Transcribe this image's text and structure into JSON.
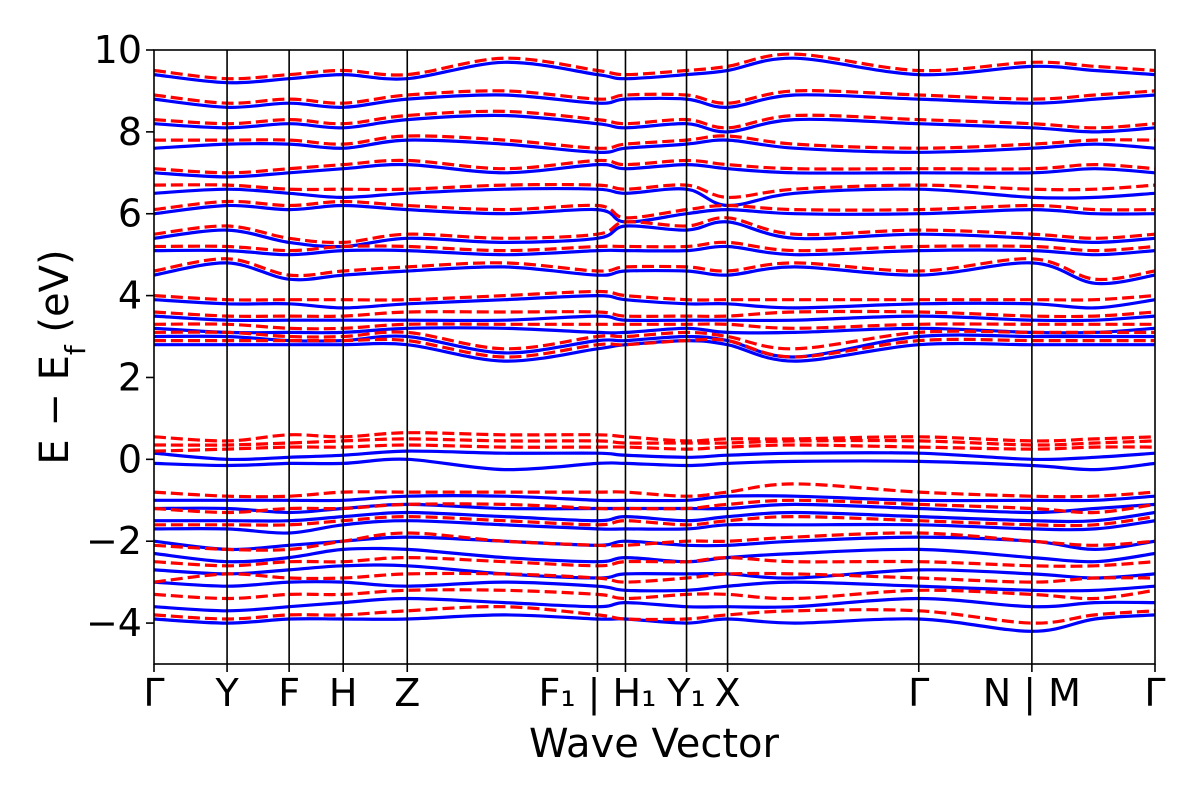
{
  "chart_data": {
    "type": "line",
    "title": "",
    "xlabel": "Wave Vector",
    "ylabel": "E − E",
    "ylabel_sub": "f",
    "ylabel_unit": " (eV)",
    "ylim": [
      -5,
      10
    ],
    "yticks": [
      -4,
      -2,
      0,
      2,
      4,
      6,
      8,
      10
    ],
    "ytick_labels": [
      "−4",
      "−2",
      "0",
      "2",
      "4",
      "6",
      "8",
      "10"
    ],
    "grid": false,
    "legend": "none",
    "colors": {
      "solid": "#0000ff",
      "dashed": "#ff0000",
      "kline": "#000000"
    },
    "x_range": [
      0,
      1
    ],
    "k_points": [
      {
        "label": "Γ",
        "x": 0.0,
        "line": false
      },
      {
        "label": "Y",
        "x": 0.073,
        "line": true
      },
      {
        "label": "F",
        "x": 0.135,
        "line": true
      },
      {
        "label": "H",
        "x": 0.189,
        "line": true
      },
      {
        "label": "Z",
        "x": 0.253,
        "line": true
      },
      {
        "label": "F₁ | H₁",
        "x": 0.443,
        "line": true
      },
      {
        "label": "",
        "x": 0.471,
        "line": true
      },
      {
        "label": "Y₁",
        "x": 0.532,
        "line": true
      },
      {
        "label": "X",
        "x": 0.573,
        "line": true
      },
      {
        "label": "Γ",
        "x": 0.764,
        "line": true
      },
      {
        "label": "N | M",
        "x": 0.877,
        "line": true
      },
      {
        "label": "Γ",
        "x": 1.0,
        "line": false
      }
    ],
    "band_x": [
      0,
      0.073,
      0.135,
      0.189,
      0.253,
      0.35,
      0.443,
      0.471,
      0.532,
      0.573,
      0.64,
      0.764,
      0.877,
      0.94,
      1.0
    ],
    "series": [
      {
        "style": "solid",
        "values": [
          -3.9,
          -4.0,
          -3.9,
          -3.9,
          -3.9,
          -3.8,
          -3.9,
          -3.9,
          -4.0,
          -3.9,
          -4.0,
          -3.9,
          -4.2,
          -3.9,
          -3.8
        ]
      },
      {
        "style": "solid",
        "values": [
          -3.6,
          -3.7,
          -3.6,
          -3.5,
          -3.4,
          -3.5,
          -3.6,
          -3.5,
          -3.6,
          -3.6,
          -3.6,
          -3.4,
          -3.6,
          -3.5,
          -3.5
        ]
      },
      {
        "style": "solid",
        "values": [
          -3.0,
          -3.1,
          -3.0,
          -3.0,
          -3.1,
          -3.0,
          -3.1,
          -3.2,
          -3.2,
          -3.1,
          -3.0,
          -3.1,
          -3.2,
          -3.2,
          -3.1
        ]
      },
      {
        "style": "solid",
        "values": [
          -2.7,
          -2.8,
          -2.7,
          -2.6,
          -2.6,
          -2.8,
          -2.9,
          -2.8,
          -2.8,
          -2.8,
          -2.9,
          -2.7,
          -2.8,
          -2.9,
          -2.8
        ]
      },
      {
        "style": "solid",
        "values": [
          -2.3,
          -2.5,
          -2.4,
          -2.2,
          -2.2,
          -2.4,
          -2.5,
          -2.4,
          -2.5,
          -2.4,
          -2.3,
          -2.2,
          -2.4,
          -2.5,
          -2.3
        ]
      },
      {
        "style": "solid",
        "values": [
          -2.0,
          -2.2,
          -2.1,
          -2.0,
          -1.9,
          -2.0,
          -2.1,
          -2.0,
          -2.1,
          -2.1,
          -2.0,
          -1.9,
          -2.0,
          -2.2,
          -2.0
        ]
      },
      {
        "style": "solid",
        "values": [
          -1.7,
          -1.7,
          -1.8,
          -1.6,
          -1.5,
          -1.6,
          -1.7,
          -1.7,
          -1.7,
          -1.6,
          -1.6,
          -1.6,
          -1.7,
          -1.7,
          -1.5
        ]
      },
      {
        "style": "solid",
        "values": [
          -1.5,
          -1.5,
          -1.5,
          -1.4,
          -1.3,
          -1.4,
          -1.5,
          -1.4,
          -1.5,
          -1.4,
          -1.3,
          -1.4,
          -1.5,
          -1.5,
          -1.3
        ]
      },
      {
        "style": "solid",
        "values": [
          -1.2,
          -1.2,
          -1.3,
          -1.2,
          -1.1,
          -1.2,
          -1.2,
          -1.2,
          -1.2,
          -1.2,
          -1.1,
          -1.2,
          -1.3,
          -1.2,
          -1.1
        ]
      },
      {
        "style": "solid",
        "values": [
          -1.0,
          -1.0,
          -1.0,
          -1.0,
          -0.9,
          -0.9,
          -1.0,
          -1.0,
          -1.0,
          -0.9,
          -0.9,
          -1.0,
          -1.0,
          -1.0,
          -0.9
        ]
      },
      {
        "style": "solid",
        "values": [
          -0.1,
          -0.15,
          -0.1,
          -0.1,
          0.0,
          -0.25,
          -0.1,
          -0.1,
          -0.15,
          -0.1,
          -0.05,
          -0.05,
          -0.15,
          -0.25,
          -0.1
        ]
      },
      {
        "style": "solid",
        "values": [
          0.15,
          0.0,
          0.05,
          0.1,
          0.2,
          0.15,
          0.15,
          0.1,
          0.05,
          0.1,
          0.15,
          0.15,
          0.0,
          0.05,
          0.15
        ]
      },
      {
        "style": "solid",
        "values": [
          2.8,
          2.8,
          2.8,
          2.8,
          2.8,
          2.4,
          2.7,
          2.8,
          2.9,
          2.8,
          2.4,
          2.8,
          2.8,
          2.8,
          2.8
        ]
      },
      {
        "style": "solid",
        "values": [
          3.0,
          3.0,
          2.9,
          2.9,
          3.0,
          2.6,
          2.9,
          2.9,
          3.0,
          2.9,
          2.5,
          3.0,
          3.0,
          3.0,
          3.0
        ]
      },
      {
        "style": "solid",
        "values": [
          3.2,
          3.1,
          3.1,
          3.1,
          3.2,
          3.2,
          3.1,
          3.1,
          3.2,
          3.1,
          3.1,
          3.2,
          3.1,
          3.1,
          3.2
        ]
      },
      {
        "style": "solid",
        "values": [
          3.5,
          3.4,
          3.4,
          3.4,
          3.4,
          3.4,
          3.5,
          3.4,
          3.4,
          3.4,
          3.4,
          3.5,
          3.4,
          3.4,
          3.5
        ]
      },
      {
        "style": "solid",
        "values": [
          3.9,
          3.8,
          3.8,
          3.7,
          3.8,
          3.9,
          4.0,
          3.9,
          3.8,
          3.8,
          3.7,
          3.8,
          3.8,
          3.7,
          3.9
        ]
      },
      {
        "style": "solid",
        "values": [
          4.5,
          4.8,
          4.4,
          4.5,
          4.6,
          4.7,
          4.5,
          4.6,
          4.6,
          4.5,
          4.7,
          4.5,
          4.8,
          4.3,
          4.5
        ]
      },
      {
        "style": "solid",
        "values": [
          5.1,
          5.1,
          5.0,
          5.1,
          5.1,
          5.0,
          5.1,
          5.1,
          5.1,
          5.2,
          5.0,
          5.1,
          5.1,
          5.0,
          5.1
        ]
      },
      {
        "style": "solid",
        "values": [
          5.4,
          5.6,
          5.3,
          5.2,
          5.4,
          5.3,
          5.4,
          5.7,
          5.6,
          5.8,
          5.4,
          5.5,
          5.4,
          5.3,
          5.4
        ]
      },
      {
        "style": "solid",
        "values": [
          6.0,
          6.2,
          6.1,
          6.2,
          6.1,
          6.0,
          6.1,
          5.8,
          6.0,
          6.1,
          6.0,
          6.0,
          6.1,
          6.0,
          6.0
        ]
      },
      {
        "style": "solid",
        "values": [
          6.5,
          6.6,
          6.5,
          6.4,
          6.5,
          6.6,
          6.6,
          6.5,
          6.6,
          6.2,
          6.5,
          6.6,
          6.4,
          6.4,
          6.5
        ]
      },
      {
        "style": "solid",
        "values": [
          7.0,
          6.9,
          7.0,
          7.1,
          7.2,
          7.0,
          7.2,
          7.1,
          7.2,
          7.1,
          7.0,
          7.0,
          7.0,
          7.1,
          7.0
        ]
      },
      {
        "style": "solid",
        "values": [
          7.6,
          7.7,
          7.7,
          7.6,
          7.8,
          7.7,
          7.5,
          7.6,
          7.7,
          7.8,
          7.6,
          7.5,
          7.6,
          7.7,
          7.6
        ]
      },
      {
        "style": "solid",
        "values": [
          8.2,
          8.1,
          8.2,
          8.1,
          8.3,
          8.4,
          8.2,
          8.1,
          8.2,
          8.0,
          8.3,
          8.2,
          8.1,
          8.0,
          8.1
        ]
      },
      {
        "style": "solid",
        "values": [
          8.8,
          8.6,
          8.7,
          8.6,
          8.8,
          8.9,
          8.7,
          8.8,
          8.8,
          8.6,
          8.9,
          8.8,
          8.7,
          8.8,
          8.9
        ]
      },
      {
        "style": "solid",
        "values": [
          9.4,
          9.2,
          9.3,
          9.4,
          9.3,
          9.7,
          9.4,
          9.3,
          9.4,
          9.5,
          9.8,
          9.4,
          9.6,
          9.5,
          9.4
        ]
      },
      {
        "style": "dashed",
        "values": [
          -3.8,
          -3.9,
          -3.8,
          -3.8,
          -3.7,
          -3.6,
          -3.8,
          -3.9,
          -3.9,
          -3.8,
          -3.7,
          -3.7,
          -4.0,
          -3.8,
          -3.7
        ]
      },
      {
        "style": "dashed",
        "values": [
          -3.3,
          -3.4,
          -3.3,
          -3.3,
          -3.2,
          -3.2,
          -3.3,
          -3.4,
          -3.3,
          -3.3,
          -3.4,
          -3.2,
          -3.3,
          -3.4,
          -3.2
        ]
      },
      {
        "style": "dashed",
        "values": [
          -3.0,
          -2.8,
          -2.9,
          -2.9,
          -2.8,
          -2.8,
          -2.9,
          -3.0,
          -2.9,
          -2.8,
          -2.8,
          -2.9,
          -3.0,
          -2.9,
          -2.9
        ]
      },
      {
        "style": "dashed",
        "values": [
          -2.5,
          -2.6,
          -2.5,
          -2.5,
          -2.4,
          -2.5,
          -2.6,
          -2.5,
          -2.5,
          -2.4,
          -2.5,
          -2.5,
          -2.6,
          -2.6,
          -2.5
        ]
      },
      {
        "style": "dashed",
        "values": [
          -2.1,
          -2.2,
          -2.2,
          -2.0,
          -1.8,
          -2.0,
          -2.1,
          -2.1,
          -2.0,
          -2.0,
          -1.9,
          -1.8,
          -2.0,
          -2.1,
          -2.0
        ]
      },
      {
        "style": "dashed",
        "values": [
          -1.6,
          -1.6,
          -1.6,
          -1.5,
          -1.4,
          -1.5,
          -1.6,
          -1.5,
          -1.6,
          -1.5,
          -1.4,
          -1.5,
          -1.6,
          -1.6,
          -1.4
        ]
      },
      {
        "style": "dashed",
        "values": [
          -1.2,
          -1.3,
          -1.2,
          -1.2,
          -1.1,
          -1.1,
          -1.2,
          -1.2,
          -1.2,
          -1.1,
          -1.0,
          -1.1,
          -1.2,
          -1.3,
          -1.1
        ]
      },
      {
        "style": "dashed",
        "values": [
          -0.8,
          -0.9,
          -0.9,
          -0.8,
          -0.8,
          -0.8,
          -0.8,
          -0.8,
          -0.9,
          -0.8,
          -0.6,
          -0.8,
          -0.9,
          -0.9,
          -0.8
        ]
      },
      {
        "style": "dashed",
        "values": [
          0.2,
          0.25,
          0.3,
          0.3,
          0.35,
          0.3,
          0.3,
          0.3,
          0.25,
          0.3,
          0.35,
          0.3,
          0.25,
          0.3,
          0.3
        ]
      },
      {
        "style": "dashed",
        "values": [
          0.35,
          0.35,
          0.4,
          0.45,
          0.5,
          0.45,
          0.45,
          0.4,
          0.4,
          0.4,
          0.45,
          0.45,
          0.35,
          0.4,
          0.45
        ]
      },
      {
        "style": "dashed",
        "values": [
          0.55,
          0.45,
          0.6,
          0.55,
          0.65,
          0.6,
          0.6,
          0.55,
          0.45,
          0.5,
          0.5,
          0.55,
          0.45,
          0.5,
          0.55
        ]
      },
      {
        "style": "dashed",
        "values": [
          2.9,
          2.9,
          2.9,
          2.9,
          2.9,
          2.5,
          2.8,
          2.8,
          2.9,
          2.9,
          2.5,
          2.9,
          2.9,
          2.9,
          2.9
        ]
      },
      {
        "style": "dashed",
        "values": [
          3.1,
          3.1,
          3.0,
          3.0,
          3.1,
          2.7,
          3.0,
          3.0,
          3.1,
          3.0,
          2.7,
          3.1,
          3.1,
          3.1,
          3.1
        ]
      },
      {
        "style": "dashed",
        "values": [
          3.3,
          3.3,
          3.2,
          3.2,
          3.3,
          3.3,
          3.3,
          3.3,
          3.3,
          3.3,
          3.2,
          3.3,
          3.3,
          3.3,
          3.3
        ]
      },
      {
        "style": "dashed",
        "values": [
          3.6,
          3.5,
          3.5,
          3.5,
          3.6,
          3.6,
          3.6,
          3.5,
          3.5,
          3.5,
          3.6,
          3.6,
          3.5,
          3.5,
          3.6
        ]
      },
      {
        "style": "dashed",
        "values": [
          4.0,
          3.9,
          3.9,
          3.9,
          3.9,
          4.0,
          4.1,
          4.0,
          3.9,
          3.9,
          3.9,
          3.9,
          3.9,
          3.9,
          4.0
        ]
      },
      {
        "style": "dashed",
        "values": [
          4.6,
          4.9,
          4.5,
          4.6,
          4.7,
          4.8,
          4.6,
          4.7,
          4.7,
          4.6,
          4.8,
          4.6,
          4.9,
          4.4,
          4.6
        ]
      },
      {
        "style": "dashed",
        "values": [
          5.2,
          5.2,
          5.1,
          5.2,
          5.2,
          5.1,
          5.2,
          5.2,
          5.2,
          5.3,
          5.1,
          5.2,
          5.2,
          5.1,
          5.2
        ]
      },
      {
        "style": "dashed",
        "values": [
          5.5,
          5.7,
          5.4,
          5.3,
          5.5,
          5.4,
          5.5,
          5.8,
          5.7,
          5.9,
          5.5,
          5.6,
          5.5,
          5.4,
          5.5
        ]
      },
      {
        "style": "dashed",
        "values": [
          6.1,
          6.3,
          6.2,
          6.3,
          6.2,
          6.1,
          6.2,
          5.9,
          6.1,
          6.2,
          6.1,
          6.1,
          6.2,
          6.1,
          6.1
        ]
      },
      {
        "style": "dashed",
        "values": [
          6.7,
          6.7,
          6.6,
          6.6,
          6.6,
          6.7,
          6.7,
          6.6,
          6.7,
          6.4,
          6.6,
          6.7,
          6.6,
          6.6,
          6.7
        ]
      },
      {
        "style": "dashed",
        "values": [
          7.1,
          7.0,
          7.1,
          7.2,
          7.3,
          7.1,
          7.3,
          7.2,
          7.3,
          7.2,
          7.1,
          7.1,
          7.1,
          7.2,
          7.1
        ]
      },
      {
        "style": "dashed",
        "values": [
          7.8,
          7.8,
          7.8,
          7.7,
          7.9,
          7.8,
          7.6,
          7.7,
          7.8,
          7.9,
          7.7,
          7.6,
          7.7,
          7.8,
          7.8
        ]
      },
      {
        "style": "dashed",
        "values": [
          8.3,
          8.2,
          8.3,
          8.2,
          8.4,
          8.5,
          8.3,
          8.2,
          8.3,
          8.1,
          8.4,
          8.3,
          8.2,
          8.1,
          8.2
        ]
      },
      {
        "style": "dashed",
        "values": [
          8.9,
          8.7,
          8.8,
          8.7,
          8.9,
          9.0,
          8.8,
          8.9,
          8.9,
          8.7,
          9.0,
          8.9,
          8.8,
          8.9,
          9.0
        ]
      },
      {
        "style": "dashed",
        "values": [
          9.5,
          9.3,
          9.4,
          9.5,
          9.4,
          9.8,
          9.5,
          9.4,
          9.5,
          9.6,
          9.9,
          9.5,
          9.7,
          9.6,
          9.5
        ]
      }
    ]
  }
}
